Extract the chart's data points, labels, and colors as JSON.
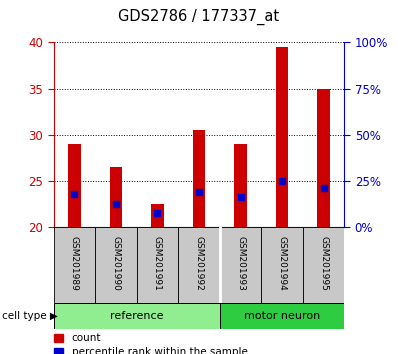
{
  "title": "GDS2786 / 177337_at",
  "samples": [
    "GSM201989",
    "GSM201990",
    "GSM201991",
    "GSM201992",
    "GSM201993",
    "GSM201994",
    "GSM201995"
  ],
  "count_values": [
    29.0,
    26.5,
    22.5,
    30.5,
    29.0,
    39.5,
    35.0
  ],
  "percentile_values": [
    23.5,
    22.5,
    21.5,
    23.8,
    23.2,
    25.0,
    24.2
  ],
  "bar_bottom": 20,
  "ylim_left": [
    20,
    40
  ],
  "ylim_right": [
    0,
    100
  ],
  "yticks_left": [
    20,
    25,
    30,
    35,
    40
  ],
  "yticks_right": [
    0,
    25,
    50,
    75,
    100
  ],
  "yticklabels_right": [
    "0%",
    "25%",
    "50%",
    "75%",
    "100%"
  ],
  "bar_color": "#cc0000",
  "percentile_color": "#0000cc",
  "bar_width": 0.3,
  "left_axis_color": "#cc0000",
  "right_axis_color": "#0000cc",
  "legend_count_label": "count",
  "legend_percentile_label": "percentile rank within the sample",
  "cell_type_label": "cell type",
  "group_ref_label": "reference",
  "group_mn_label": "motor neuron",
  "ref_color": "#90ee90",
  "mn_color": "#2ecc40",
  "label_bg_color": "#c8c8c8",
  "ref_count": 4,
  "mn_count": 3
}
